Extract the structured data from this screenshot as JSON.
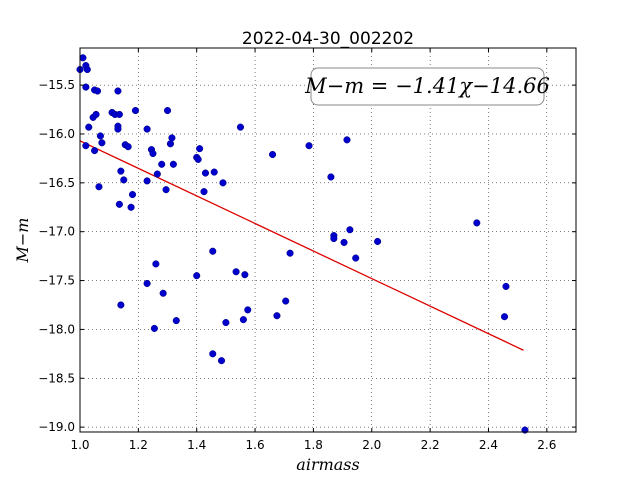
{
  "chart_data": {
    "type": "scatter",
    "title": "2022-04-30_002202",
    "xlabel": "airmass",
    "ylabel": "M−m",
    "xlim": [
      1.0,
      2.7
    ],
    "ylim": [
      -19.05,
      -15.12
    ],
    "grid": true,
    "xticks": [
      "1.0",
      "1.2",
      "1.4",
      "1.6",
      "1.8",
      "2.0",
      "2.2",
      "2.4",
      "2.6"
    ],
    "yticks": [
      "−15.5",
      "−16.0",
      "−16.5",
      "−17.0",
      "−17.5",
      "−18.0",
      "−18.5",
      "−19.0"
    ],
    "fit_label": "M−m = −1.41χ−14.66",
    "fit": {
      "slope": -1.41,
      "intercept": -14.66,
      "x_range": [
        1.0,
        2.52
      ]
    },
    "colors": {
      "points": "#0000cc",
      "fit_line": "#dd0000"
    },
    "points": [
      [
        1.01,
        -15.22
      ],
      [
        1.0,
        -15.34
      ],
      [
        1.02,
        -15.3
      ],
      [
        1.025,
        -15.34
      ],
      [
        1.02,
        -15.52
      ],
      [
        1.05,
        -15.55
      ],
      [
        1.06,
        -15.56
      ],
      [
        1.045,
        -15.83
      ],
      [
        1.055,
        -15.8
      ],
      [
        1.03,
        -15.93
      ],
      [
        1.02,
        -16.12
      ],
      [
        1.05,
        -16.17
      ],
      [
        1.07,
        -16.02
      ],
      [
        1.075,
        -16.09
      ],
      [
        1.065,
        -16.54
      ],
      [
        1.11,
        -15.78
      ],
      [
        1.12,
        -15.8
      ],
      [
        1.135,
        -15.8
      ],
      [
        1.13,
        -15.56
      ],
      [
        1.13,
        -15.92
      ],
      [
        1.13,
        -15.95
      ],
      [
        1.155,
        -16.11
      ],
      [
        1.165,
        -16.13
      ],
      [
        1.19,
        -15.76
      ],
      [
        1.14,
        -16.38
      ],
      [
        1.15,
        -16.47
      ],
      [
        1.18,
        -16.62
      ],
      [
        1.135,
        -16.72
      ],
      [
        1.175,
        -16.75
      ],
      [
        1.14,
        -17.75
      ],
      [
        1.23,
        -15.95
      ],
      [
        1.245,
        -16.16
      ],
      [
        1.25,
        -16.2
      ],
      [
        1.23,
        -16.48
      ],
      [
        1.265,
        -16.41
      ],
      [
        1.28,
        -16.31
      ],
      [
        1.3,
        -15.76
      ],
      [
        1.315,
        -16.04
      ],
      [
        1.31,
        -16.1
      ],
      [
        1.32,
        -16.31
      ],
      [
        1.295,
        -16.57
      ],
      [
        1.26,
        -17.33
      ],
      [
        1.23,
        -17.53
      ],
      [
        1.285,
        -17.63
      ],
      [
        1.33,
        -17.91
      ],
      [
        1.255,
        -17.99
      ],
      [
        1.4,
        -16.24
      ],
      [
        1.41,
        -16.15
      ],
      [
        1.405,
        -16.26
      ],
      [
        1.43,
        -16.4
      ],
      [
        1.425,
        -16.59
      ],
      [
        1.46,
        -16.39
      ],
      [
        1.49,
        -16.5
      ],
      [
        1.4,
        -17.45
      ],
      [
        1.455,
        -17.2
      ],
      [
        1.535,
        -17.41
      ],
      [
        1.565,
        -17.44
      ],
      [
        1.575,
        -17.8
      ],
      [
        1.56,
        -17.9
      ],
      [
        1.5,
        -17.93
      ],
      [
        1.455,
        -18.25
      ],
      [
        1.485,
        -18.32
      ],
      [
        1.55,
        -15.93
      ],
      [
        1.66,
        -16.21
      ],
      [
        1.72,
        -17.22
      ],
      [
        1.705,
        -17.71
      ],
      [
        1.675,
        -17.86
      ],
      [
        1.785,
        -16.12
      ],
      [
        1.86,
        -16.44
      ],
      [
        1.915,
        -16.06
      ],
      [
        1.87,
        -17.04
      ],
      [
        1.87,
        -17.07
      ],
      [
        1.905,
        -17.11
      ],
      [
        1.925,
        -16.98
      ],
      [
        1.945,
        -17.27
      ],
      [
        2.02,
        -17.1
      ],
      [
        2.36,
        -16.91
      ],
      [
        2.46,
        -17.56
      ],
      [
        2.455,
        -17.87
      ],
      [
        2.525,
        -19.03
      ]
    ]
  }
}
